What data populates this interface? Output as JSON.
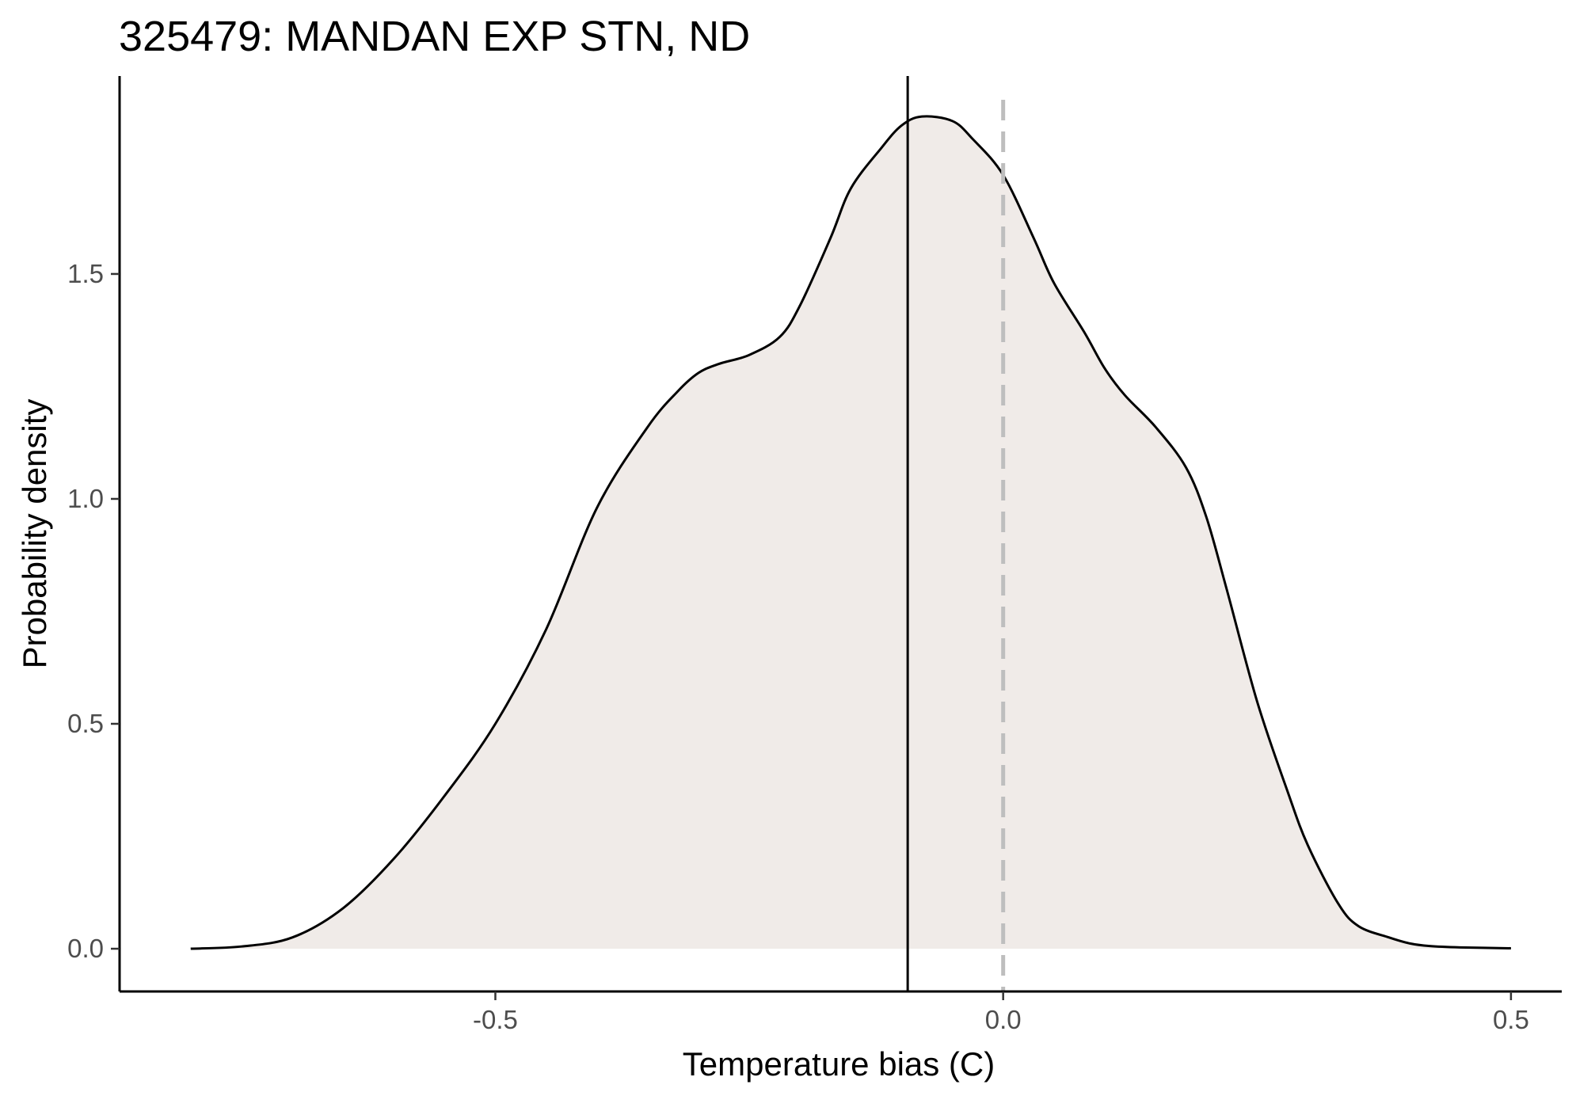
{
  "chart_data": {
    "type": "area",
    "title": "325479: MANDAN EXP STN, ND",
    "xlabel": "Temperature bias (C)",
    "ylabel": "Probability density",
    "xlim": [
      -0.87,
      0.55
    ],
    "ylim": [
      -0.095,
      1.94
    ],
    "x_ticks": [
      -0.5,
      0.0,
      0.5
    ],
    "x_tick_labels": [
      "-0.5",
      "0.0",
      "0.5"
    ],
    "y_ticks": [
      0.0,
      0.5,
      1.0,
      1.5
    ],
    "y_tick_labels": [
      "0.0",
      "0.5",
      "1.0",
      "1.5"
    ],
    "grid": false,
    "legend": "none",
    "colors": {
      "fill": "#f0ebe8",
      "curve": "#000000",
      "zero_line": "#bebebe",
      "mean_line": "#000000"
    },
    "reference_lines": [
      {
        "x": -0.094,
        "style": "solid"
      },
      {
        "x": 0.0,
        "style": "dashed"
      }
    ],
    "series": [
      {
        "x": [
          -0.8,
          -0.75,
          -0.7,
          -0.65,
          -0.6,
          -0.55,
          -0.5,
          -0.45,
          -0.4,
          -0.35,
          -0.32,
          -0.3,
          -0.28,
          -0.25,
          -0.22,
          -0.2,
          -0.17,
          -0.15,
          -0.12,
          -0.1,
          -0.08,
          -0.05,
          -0.03,
          0.0,
          0.03,
          0.05,
          0.08,
          0.1,
          0.12,
          0.15,
          0.18,
          0.2,
          0.22,
          0.25,
          0.28,
          0.3,
          0.33,
          0.35,
          0.38,
          0.4,
          0.42,
          0.45,
          0.5
        ],
        "values": [
          0.0,
          0.005,
          0.025,
          0.09,
          0.2,
          0.34,
          0.5,
          0.71,
          0.98,
          1.16,
          1.24,
          1.28,
          1.3,
          1.32,
          1.36,
          1.43,
          1.58,
          1.69,
          1.78,
          1.83,
          1.85,
          1.84,
          1.8,
          1.72,
          1.58,
          1.48,
          1.37,
          1.29,
          1.23,
          1.16,
          1.07,
          0.96,
          0.8,
          0.55,
          0.35,
          0.23,
          0.1,
          0.05,
          0.025,
          0.012,
          0.006,
          0.003,
          0.001
        ]
      }
    ]
  }
}
